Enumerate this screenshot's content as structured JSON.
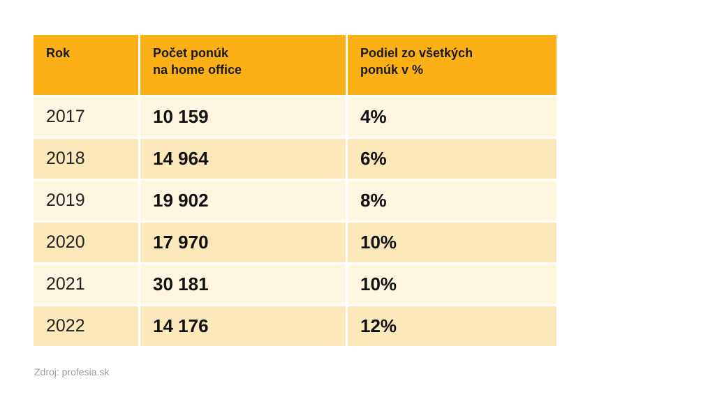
{
  "table": {
    "headers": [
      "Rok",
      "Počet ponúk\nna home office",
      "Podiel zo všetkých\nponúk v %"
    ],
    "rows": [
      {
        "year": "2017",
        "count": "10 159",
        "share": "4%"
      },
      {
        "year": "2018",
        "count": "14 964",
        "share": "6%"
      },
      {
        "year": "2019",
        "count": "19 902",
        "share": "8%"
      },
      {
        "year": "2020",
        "count": "17 970",
        "share": "10%"
      },
      {
        "year": "2021",
        "count": "30 181",
        "share": "10%"
      },
      {
        "year": "2022",
        "count": "14 176",
        "share": "12%"
      }
    ]
  },
  "source": "Zdroj: profesia.sk",
  "colors": {
    "header": "#fbb017",
    "row_light": "#fef6df",
    "row_dark": "#fce8bb"
  }
}
